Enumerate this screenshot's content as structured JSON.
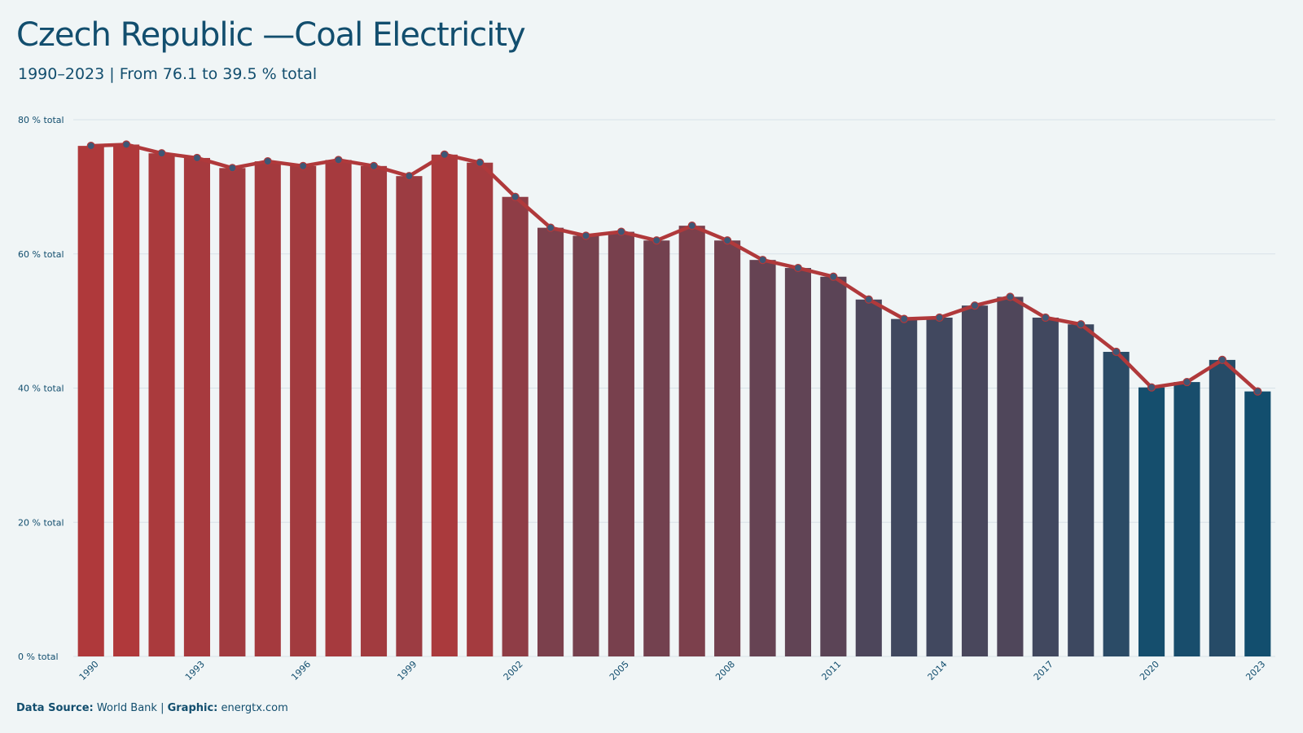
{
  "header": {
    "title": "Czech Republic —Coal Electricity",
    "subtitle": "1990–2023 | From 76.1 to 39.5 % total"
  },
  "footer": {
    "source_label": "Data Source:",
    "source_value": " World Bank | ",
    "graphic_label": "Graphic:",
    "graphic_value": " energtx.com"
  },
  "colors": {
    "background": "#f0f5f6",
    "bar_high": "#b0393b",
    "bar_low": "#124e6e",
    "line": "#b0393b",
    "marker": "#3e5775",
    "grid": "#d7e2e8",
    "text": "#124e6e"
  },
  "chart_data": {
    "type": "bar",
    "categories": [
      "1990",
      "1991",
      "1992",
      "1993",
      "1994",
      "1995",
      "1996",
      "1997",
      "1998",
      "1999",
      "2000",
      "2001",
      "2002",
      "2003",
      "2004",
      "2005",
      "2006",
      "2007",
      "2008",
      "2009",
      "2010",
      "2011",
      "2012",
      "2013",
      "2014",
      "2015",
      "2016",
      "2017",
      "2018",
      "2019",
      "2020",
      "2021",
      "2022",
      "2023"
    ],
    "values": [
      76.1,
      76.3,
      75.0,
      74.3,
      72.8,
      73.8,
      73.1,
      74.0,
      73.1,
      71.6,
      74.8,
      73.6,
      68.5,
      63.9,
      62.7,
      63.3,
      62.0,
      64.2,
      62.0,
      59.1,
      57.9,
      56.6,
      53.2,
      50.3,
      50.5,
      52.3,
      53.6,
      50.5,
      49.5,
      45.4,
      40.1,
      40.9,
      44.2,
      39.5
    ],
    "overlay_line": true,
    "ylim": [
      0,
      80
    ],
    "yticks": [
      {
        "value": 0,
        "label": "0 % total"
      },
      {
        "value": 20,
        "label": "20 % total"
      },
      {
        "value": 40,
        "label": "40 % total"
      },
      {
        "value": 60,
        "label": "60 % total"
      },
      {
        "value": 80,
        "label": "80 % total"
      }
    ],
    "xtick_labels": [
      "1990",
      "1993",
      "1996",
      "1999",
      "2002",
      "2005",
      "2008",
      "2011",
      "2014",
      "2017",
      "2020",
      "2023"
    ],
    "grid": true,
    "legend": "none"
  }
}
